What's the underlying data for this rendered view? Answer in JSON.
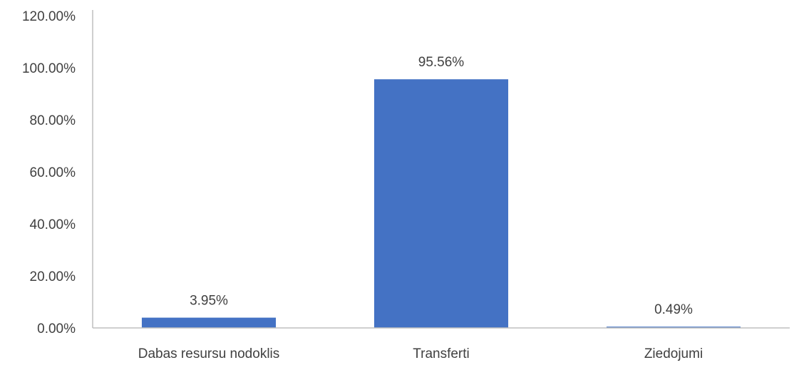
{
  "chart_data": {
    "type": "bar",
    "categories": [
      "Dabas resursu nodoklis",
      "Transferti",
      "Ziedojumi"
    ],
    "values": [
      3.95,
      95.56,
      0.49
    ],
    "data_labels": [
      "3.95%",
      "95.56%",
      "0.49%"
    ],
    "title": "",
    "xlabel": "",
    "ylabel": "",
    "ylim": [
      0,
      120
    ],
    "yticks": [
      0,
      20,
      40,
      60,
      80,
      100,
      120
    ],
    "ytick_labels": [
      "0.00%",
      "20.00%",
      "40.00%",
      "60.00%",
      "80.00%",
      "100.00%",
      "120.00%"
    ],
    "grid": false,
    "legend": "none",
    "bar_color": "#4472C4",
    "axis_color": "#BFBFBF",
    "text_color": "#404040"
  }
}
